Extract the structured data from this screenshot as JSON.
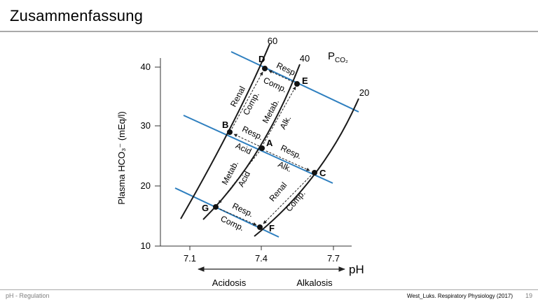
{
  "slide": {
    "title": "Zusammenfassung",
    "footer_left": "pH - Regulation",
    "footer_source": "West_Luks. Respiratory Physiology (2017)",
    "page_number": "19"
  },
  "diagram": {
    "y_axis_label": "Plasma HCO₃⁻  (mEq/l)",
    "y_ticks": [
      "10",
      "20",
      "30",
      "40"
    ],
    "x_ticks": [
      "7.1",
      "7.4",
      "7.7"
    ],
    "x_axis_label": "pH",
    "pco2_label": "P",
    "pco2_subscript": "CO₂",
    "isobar_labels": [
      "60",
      "40",
      "20"
    ],
    "direction_left": "Acidosis",
    "direction_right": "Alkalosis",
    "points": {
      "A": "A",
      "B": "B",
      "C": "C",
      "D": "D",
      "E": "E",
      "F": "F",
      "G": "G"
    },
    "annotations": {
      "resp_DE": "Resp.",
      "comp_DE": "Comp.",
      "renal_BD": "Renal",
      "comp_BD": "Comp.",
      "metab_AE": "Metab.",
      "alk_AE": "Alk.",
      "resp_AB": "Resp.",
      "acid_AB": "Acid",
      "resp_AC": "Resp.",
      "alk_AC": "Alk.",
      "metab_AG": "Metab.",
      "acid_AG": "Acid",
      "renal_CF": "Renal",
      "comp_CF": "Comp.",
      "resp_GF": "Resp.",
      "comp_GF": "Comp."
    },
    "colors": {
      "buffer_line": "#2e7fbf",
      "isobar": "#1a1a1a",
      "axis": "#333333"
    }
  }
}
